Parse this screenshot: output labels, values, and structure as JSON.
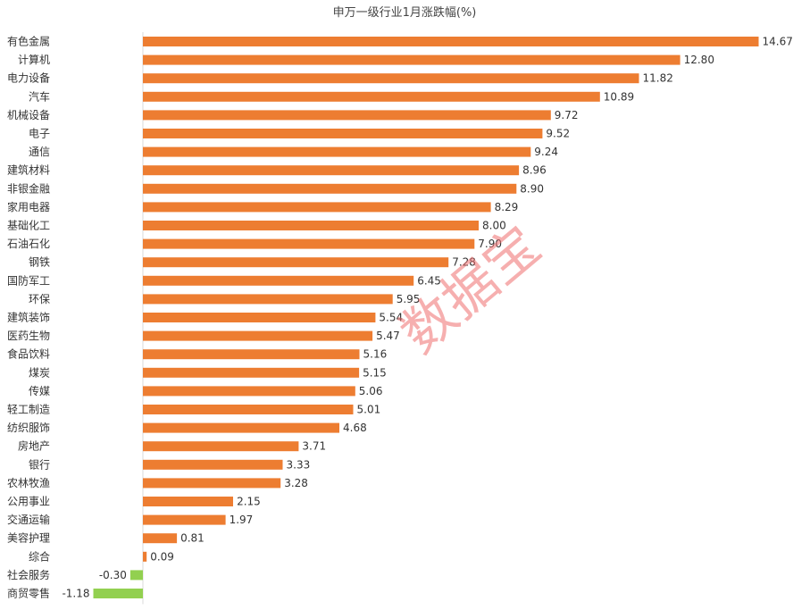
{
  "chart_data": {
    "type": "bar",
    "orientation": "horizontal",
    "title": "申万一级行业1月涨跌幅(%)",
    "categories": [
      "有色金属",
      "计算机",
      "电力设备",
      "汽车",
      "机械设备",
      "电子",
      "通信",
      "建筑材料",
      "非银金融",
      "家用电器",
      "基础化工",
      "石油石化",
      "钢铁",
      "国防军工",
      "环保",
      "建筑装饰",
      "医药生物",
      "食品饮料",
      "煤炭",
      "传媒",
      "轻工制造",
      "纺织服饰",
      "房地产",
      "银行",
      "农林牧渔",
      "公用事业",
      "交通运输",
      "美容护理",
      "综合",
      "社会服务",
      "商贸零售"
    ],
    "values": [
      14.67,
      12.8,
      11.82,
      10.89,
      9.72,
      9.52,
      9.24,
      8.96,
      8.9,
      8.29,
      8.0,
      7.9,
      7.28,
      6.45,
      5.95,
      5.54,
      5.47,
      5.16,
      5.15,
      5.06,
      5.01,
      4.68,
      3.71,
      3.33,
      3.28,
      2.15,
      1.97,
      0.81,
      0.09,
      -0.3,
      -1.18
    ],
    "value_labels": [
      "14.67",
      "12.80",
      "11.82",
      "10.89",
      "9.72",
      "9.52",
      "9.24",
      "8.96",
      "8.90",
      "8.29",
      "8.00",
      "7.90",
      "7.28",
      "6.45",
      "5.95",
      "5.54",
      "5.47",
      "5.16",
      "5.15",
      "5.06",
      "5.01",
      "4.68",
      "3.71",
      "3.33",
      "3.28",
      "2.15",
      "1.97",
      "0.81",
      "0.09",
      "-0.30",
      "-1.18"
    ],
    "colors": {
      "positive": "#ed7d31",
      "negative": "#92d050",
      "axis": "#d9d9d9",
      "text": "#333333"
    },
    "legend": "none",
    "grid": false
  },
  "watermark": "数据宝"
}
